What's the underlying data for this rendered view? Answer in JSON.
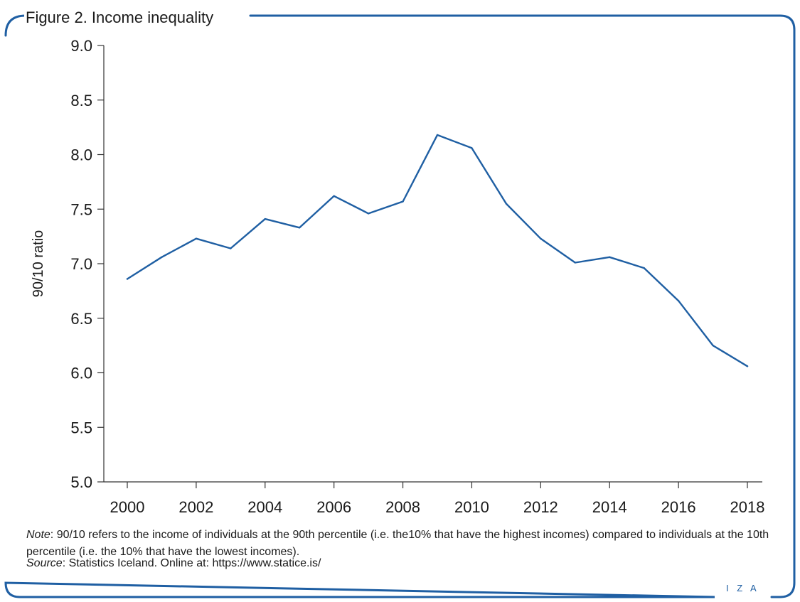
{
  "figure": {
    "title": "Figure 2. Income inequality",
    "frame_color": "#1f5fa3"
  },
  "chart_data": {
    "type": "line",
    "title": "Figure 2. Income inequality",
    "xlabel": "",
    "ylabel": "90/10 ratio",
    "x": [
      2000,
      2001,
      2002,
      2003,
      2004,
      2005,
      2006,
      2007,
      2008,
      2009,
      2010,
      2011,
      2012,
      2013,
      2014,
      2015,
      2016,
      2017,
      2018
    ],
    "x_ticks": [
      "2000",
      "2002",
      "2004",
      "2006",
      "2008",
      "2010",
      "2012",
      "2014",
      "2016",
      "2018"
    ],
    "y_ticks": [
      "5.0",
      "5.5",
      "6.0",
      "6.5",
      "7.0",
      "7.5",
      "8.0",
      "8.5",
      "9.0"
    ],
    "xlim": [
      2000,
      2018
    ],
    "ylim": [
      5.0,
      9.0
    ],
    "grid": false,
    "legend": "none",
    "series": [
      {
        "color": "#1f5fa3",
        "values": [
          6.86,
          7.06,
          7.23,
          7.14,
          7.41,
          7.33,
          7.62,
          7.46,
          7.57,
          8.18,
          8.06,
          7.55,
          7.23,
          7.01,
          7.06,
          6.96,
          6.66,
          6.25,
          6.06
        ]
      }
    ]
  },
  "note": {
    "label": "Note",
    "text": ": 90/10 refers to the income of individuals at the 90th percentile (i.e. the10% that have the highest incomes) compared to individuals at the 10th percentile (i.e. the 10% that have the lowest incomes)."
  },
  "source": {
    "label": "Source",
    "text": ": Statistics Iceland. Online at: https://www.statice.is/"
  },
  "logo": {
    "text": "I Z A"
  }
}
